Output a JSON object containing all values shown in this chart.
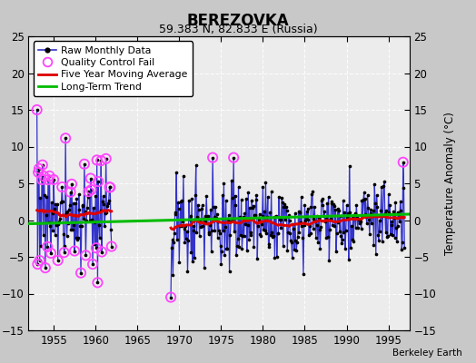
{
  "title": "BEREZOVKA",
  "subtitle": "59.383 N, 82.833 E (Russia)",
  "ylabel": "Temperature Anomaly (°C)",
  "attribution": "Berkeley Earth",
  "xlim": [
    1952.0,
    1997.5
  ],
  "ylim": [
    -15,
    25
  ],
  "yticks": [
    -15,
    -10,
    -5,
    0,
    5,
    10,
    15,
    20,
    25
  ],
  "xticks": [
    1955,
    1960,
    1965,
    1970,
    1975,
    1980,
    1985,
    1990,
    1995
  ],
  "plot_bg": "#ececec",
  "fig_bg": "#c8c8c8",
  "raw_color": "#3333cc",
  "dot_color": "#000000",
  "qc_color": "#ff44ff",
  "ma_color": "#dd0000",
  "trend_color": "#00bb00",
  "period1_start": 1953.0,
  "period1_end": 1962.0,
  "period2_start": 1969.0,
  "period2_end": 1997.0,
  "seed": 17
}
